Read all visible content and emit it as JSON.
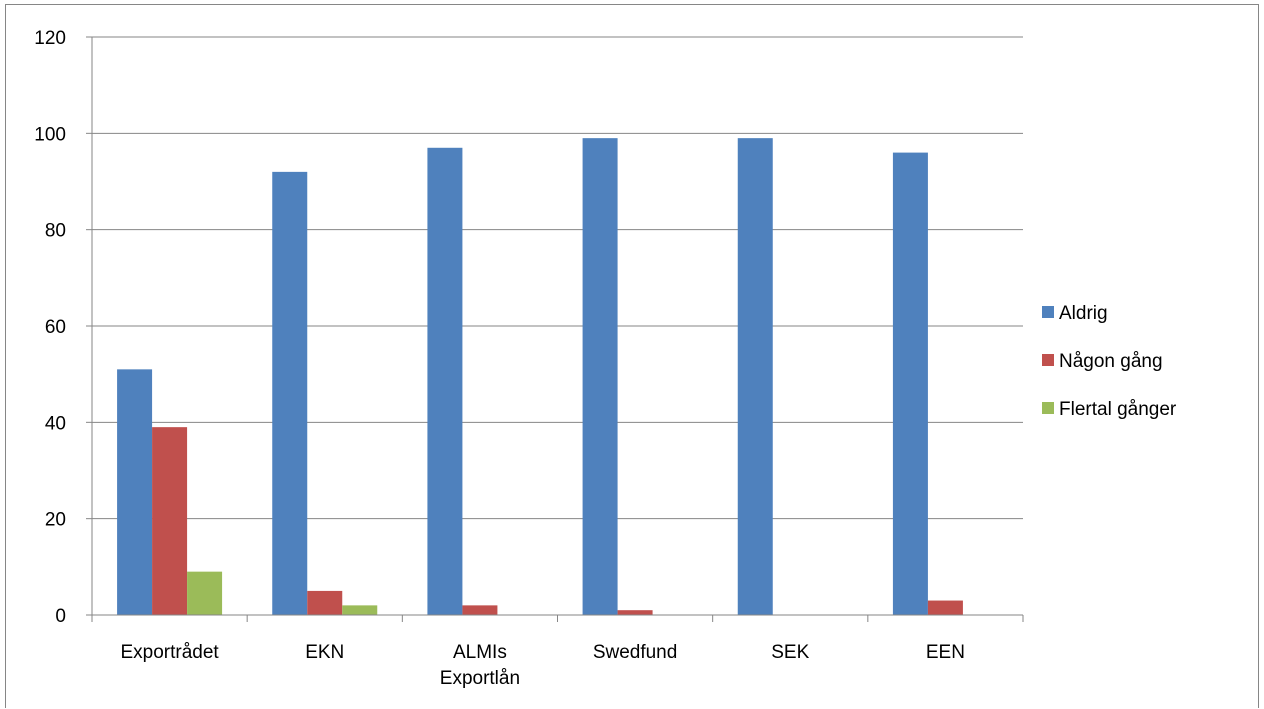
{
  "chart_data": {
    "type": "bar",
    "title": "",
    "xlabel": "",
    "ylabel": "",
    "categories": [
      [
        "Exportrådet"
      ],
      [
        "EKN"
      ],
      [
        "ALMIs",
        "Exportlån"
      ],
      [
        "Swedfund"
      ],
      [
        "SEK"
      ],
      [
        "EEN"
      ]
    ],
    "series": [
      {
        "name": "Aldrig",
        "color": "#4F81BD",
        "values": [
          51,
          92,
          97,
          99,
          99,
          96
        ]
      },
      {
        "name": "Någon gång",
        "color": "#C0504D",
        "values": [
          39,
          5,
          2,
          1,
          0,
          3
        ]
      },
      {
        "name": "Flertal gånger",
        "color": "#9BBB59",
        "values": [
          9,
          2,
          0,
          0,
          0,
          0
        ]
      }
    ],
    "ylim": [
      0,
      120
    ],
    "yticks": [
      0,
      20,
      40,
      60,
      80,
      100,
      120
    ],
    "grid": true,
    "legend_position": "right"
  }
}
